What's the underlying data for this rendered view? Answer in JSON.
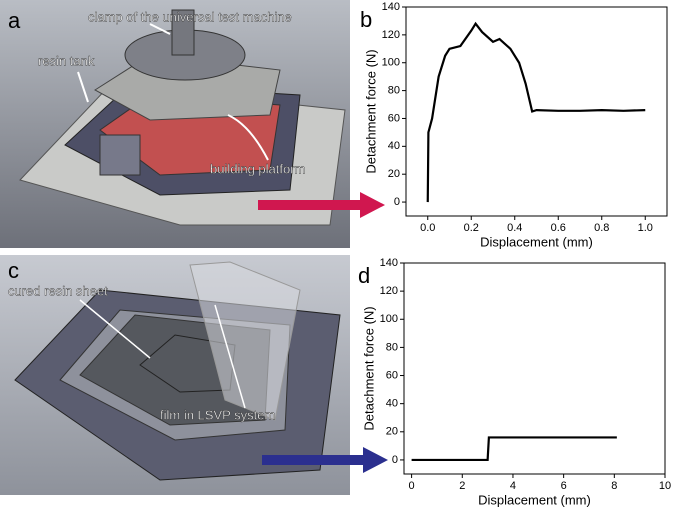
{
  "panels": [
    {
      "label": "a",
      "annotations": [
        "clamp of the universal test machine",
        "resin tank",
        "building platform"
      ]
    },
    {
      "label": "c",
      "annotations": [
        "cured resin sheet",
        "film in LSVP system"
      ]
    }
  ],
  "chart_data": [
    {
      "type": "line",
      "label": "b",
      "xlabel": "Displacement (mm)",
      "ylabel": "Detachment force (N)",
      "x": [
        0,
        0.003,
        0.02,
        0.05,
        0.08,
        0.1,
        0.15,
        0.2,
        0.22,
        0.25,
        0.3,
        0.33,
        0.38,
        0.42,
        0.45,
        0.48,
        0.5,
        0.6,
        0.7,
        0.8,
        0.9,
        1.0
      ],
      "series": [
        {
          "color": "#000000",
          "values": [
            0,
            50,
            60,
            90,
            105,
            110,
            112,
            123,
            128,
            122,
            115,
            117,
            110,
            100,
            85,
            65,
            66,
            65.5,
            65.5,
            66,
            65.5,
            66
          ]
        }
      ],
      "xlim": [
        -0.1,
        1.1
      ],
      "ylim": [
        -10,
        140
      ],
      "xticks": [
        {
          "value": 0,
          "label": "0.0"
        },
        {
          "value": 0.2,
          "label": "0.2"
        },
        {
          "value": 0.4,
          "label": "0.4"
        },
        {
          "value": 0.6,
          "label": "0.6"
        },
        {
          "value": 0.8,
          "label": "0.8"
        },
        {
          "value": 1,
          "label": "1.0"
        }
      ],
      "yticks": [
        0,
        20,
        40,
        60,
        80,
        100,
        120,
        140
      ]
    },
    {
      "type": "line",
      "label": "d",
      "xlabel": "Displacement (mm)",
      "ylabel": "Detachment force (N)",
      "x": [
        0,
        3,
        3.05,
        8.1
      ],
      "series": [
        {
          "color": "#000000",
          "values": [
            0,
            0,
            16,
            16
          ]
        }
      ],
      "xlim": [
        -0.3,
        10
      ],
      "ylim": [
        -10,
        140
      ],
      "xticks": [
        0,
        2,
        4,
        6,
        8,
        10
      ],
      "yticks": [
        0,
        20,
        40,
        60,
        80,
        100,
        120,
        140
      ]
    }
  ]
}
